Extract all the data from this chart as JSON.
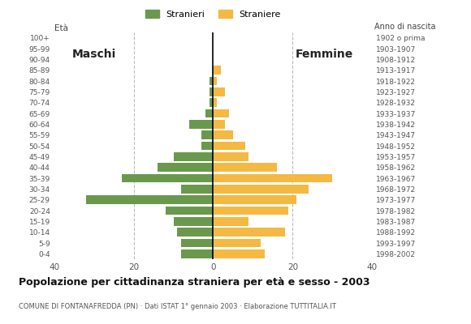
{
  "age_groups": [
    "100+",
    "95-99",
    "90-94",
    "85-89",
    "80-84",
    "75-79",
    "70-74",
    "65-69",
    "60-64",
    "55-59",
    "50-54",
    "45-49",
    "40-44",
    "35-39",
    "30-34",
    "25-29",
    "20-24",
    "15-19",
    "10-14",
    "5-9",
    "0-4"
  ],
  "birth_years": [
    "1902 o prima",
    "1903-1907",
    "1908-1912",
    "1913-1917",
    "1918-1922",
    "1923-1927",
    "1928-1932",
    "1933-1937",
    "1938-1942",
    "1943-1947",
    "1948-1952",
    "1953-1957",
    "1958-1962",
    "1963-1967",
    "1968-1972",
    "1973-1977",
    "1978-1982",
    "1983-1987",
    "1988-1992",
    "1993-1997",
    "1998-2002"
  ],
  "males": [
    0,
    0,
    0,
    0,
    1,
    1,
    1,
    2,
    6,
    3,
    3,
    10,
    14,
    23,
    8,
    32,
    12,
    10,
    9,
    8,
    8
  ],
  "females": [
    0,
    0,
    0,
    2,
    1,
    3,
    1,
    4,
    3,
    5,
    8,
    9,
    16,
    30,
    24,
    21,
    19,
    9,
    18,
    12,
    13
  ],
  "male_color": "#6a994e",
  "female_color": "#f4b942",
  "title": "Popolazione per cittadinanza straniera per età e sesso - 2003",
  "subtitle": "COMUNE DI FONTANAFREDDA (PN) · Dati ISTAT 1° gennaio 2003 · Elaborazione TUTTITALIA.IT",
  "legend_male": "Stranieri",
  "legend_female": "Straniere",
  "label_maschi": "Maschi",
  "label_femmine": "Femmine",
  "age_label": "Età",
  "birth_year_label": "Anno di nascita",
  "xlim": 40,
  "background_color": "#ffffff",
  "grid_color": "#bbbbbb",
  "bar_height": 0.82
}
